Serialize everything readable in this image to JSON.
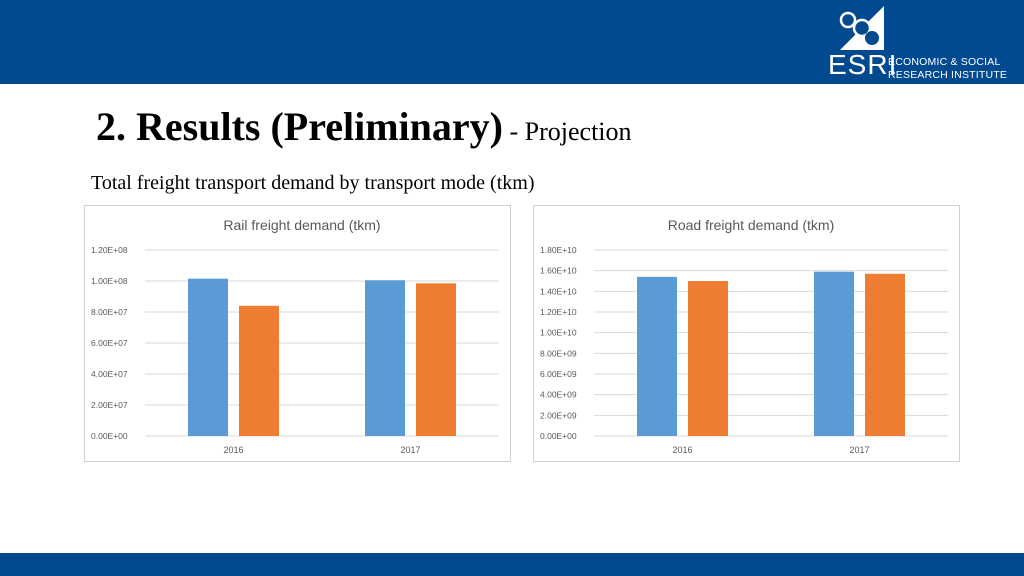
{
  "header": {
    "logo_mark": "ESRI",
    "logo_line1": "ECONOMIC & SOCIAL",
    "logo_line2": "RESEARCH INSTITUTE"
  },
  "slide": {
    "title": "2. Results (Preliminary)",
    "subtitle": " - Projection",
    "caption": "Total freight transport demand by transport mode (tkm)"
  },
  "colors": {
    "band": "#024a8f",
    "series_1": "#5b9bd5",
    "series_2": "#ed7d31"
  },
  "chart_data": [
    {
      "type": "bar",
      "title": "Rail freight demand (tkm)",
      "categories": [
        "2016",
        "2017"
      ],
      "series": [
        {
          "values": [
            101500000,
            100500000
          ]
        },
        {
          "values": [
            84000000,
            98500000
          ]
        }
      ],
      "ylim": [
        0,
        120000000
      ],
      "yticks": [
        0,
        20000000,
        40000000,
        60000000,
        80000000,
        100000000,
        120000000
      ],
      "ytick_labels": [
        "0.00E+00",
        "2.00E+07",
        "4.00E+07",
        "6.00E+07",
        "8.00E+07",
        "1.00E+08",
        "1.20E+08"
      ],
      "grid": true,
      "legend": "none"
    },
    {
      "type": "bar",
      "title": "Road freight demand (tkm)",
      "categories": [
        "2016",
        "2017"
      ],
      "series": [
        {
          "values": [
            15400000000,
            15900000000
          ]
        },
        {
          "values": [
            15000000000,
            15700000000
          ]
        }
      ],
      "ylim": [
        0,
        18000000000
      ],
      "yticks": [
        0,
        2000000000,
        4000000000,
        6000000000,
        8000000000,
        10000000000,
        12000000000,
        14000000000,
        16000000000,
        18000000000
      ],
      "ytick_labels": [
        "0.00E+00",
        "2.00E+09",
        "4.00E+09",
        "6.00E+09",
        "8.00E+09",
        "1.00E+10",
        "1.20E+10",
        "1.40E+10",
        "1.60E+10",
        "1.80E+10"
      ],
      "grid": true,
      "legend": "none"
    }
  ]
}
